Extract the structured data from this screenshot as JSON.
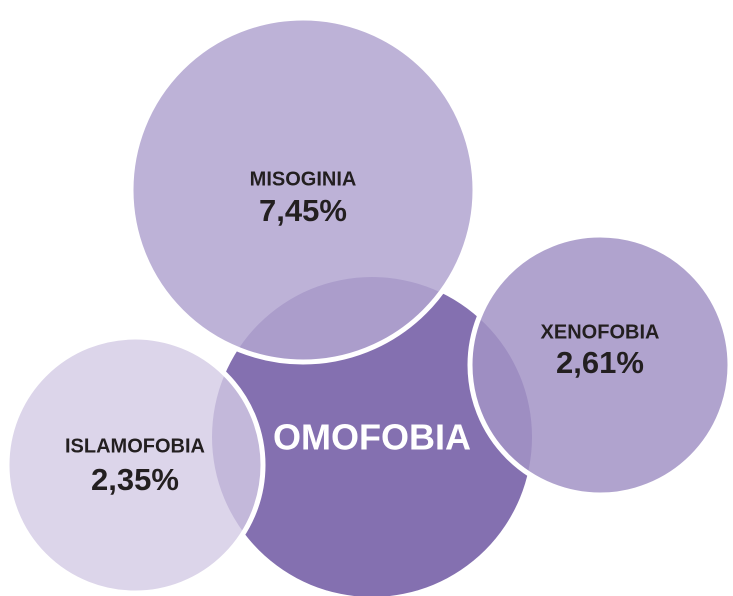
{
  "nodes": [
    {
      "label": "MISOGINIA",
      "value": "7,45%"
    },
    {
      "label": "OMOFOBIA"
    },
    {
      "label": "XENOFOBIA",
      "value": "2,61%"
    },
    {
      "label": "ISLAMOFOBIA",
      "value": "2,35%"
    }
  ]
}
